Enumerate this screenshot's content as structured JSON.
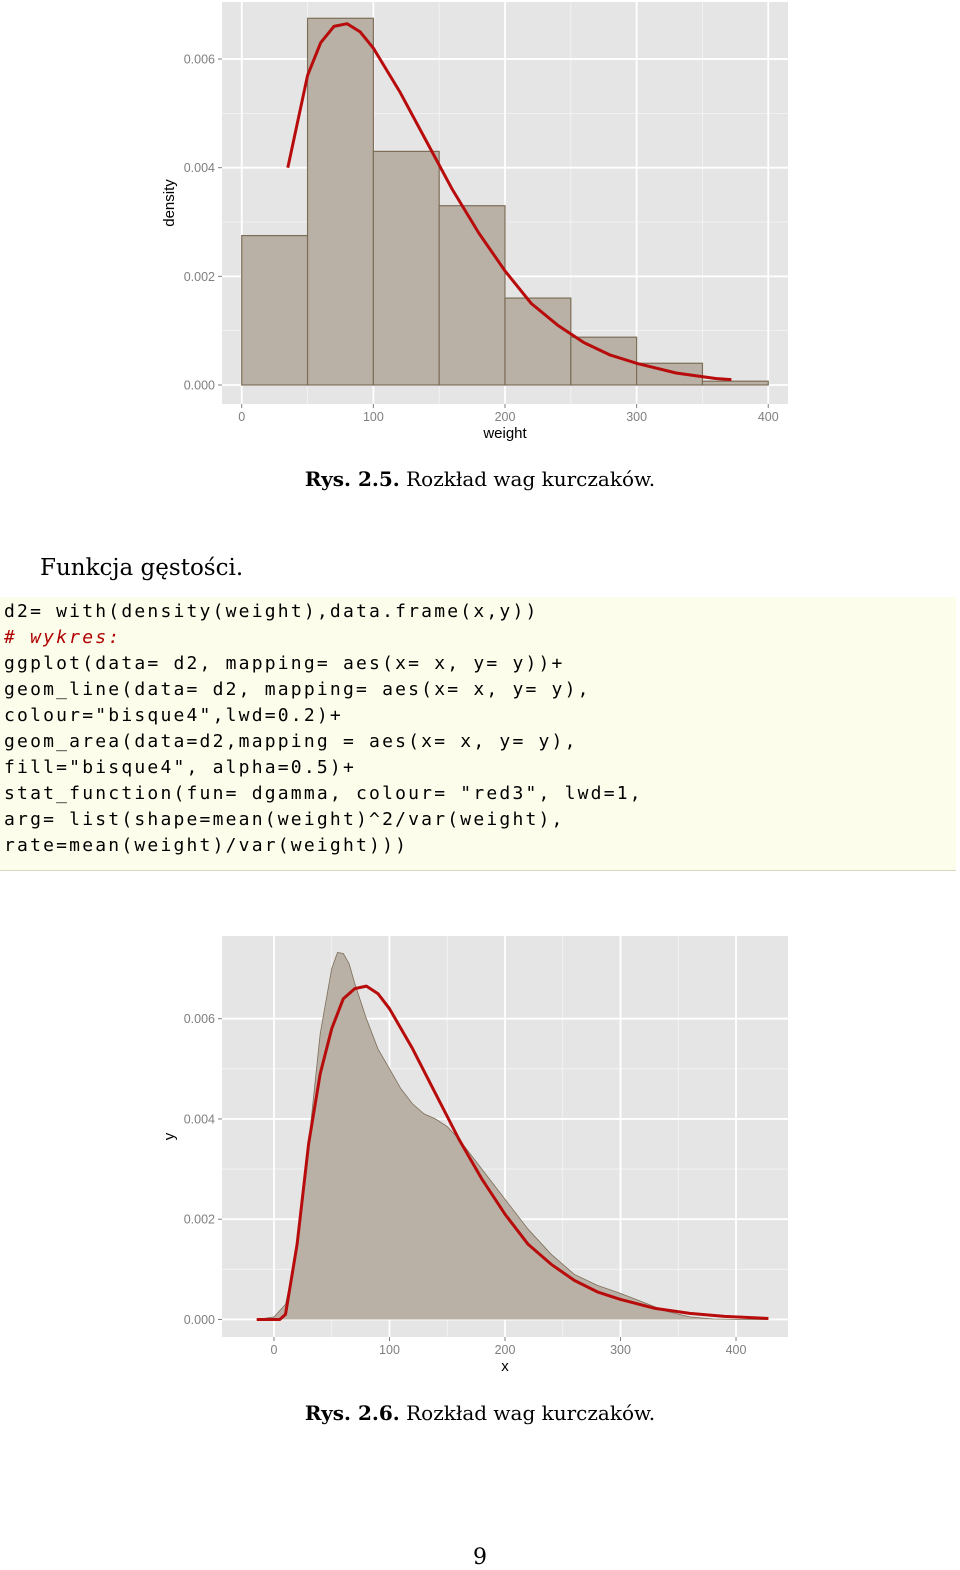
{
  "figure1": {
    "caption_label": "Rys. 2.5.",
    "caption_text": "Rozkład wag kurczaków.",
    "chart_data": {
      "type": "bar",
      "xlabel": "weight",
      "ylabel": "density",
      "xlim": [
        -15,
        415
      ],
      "ylim": [
        -0.00035,
        0.00705
      ],
      "xticks": [
        "0",
        "100",
        "200",
        "300",
        "400"
      ],
      "yticks": [
        "0.000",
        "0.002",
        "0.004",
        "0.006"
      ],
      "bins": [
        [
          0,
          50
        ],
        [
          50,
          100
        ],
        [
          100,
          150
        ],
        [
          150,
          200
        ],
        [
          200,
          250
        ],
        [
          250,
          300
        ],
        [
          300,
          350
        ],
        [
          350,
          400
        ]
      ],
      "values": [
        0.00275,
        0.00675,
        0.0043,
        0.0033,
        0.0016,
        0.00088,
        0.0004,
        7e-05
      ],
      "curve": {
        "x": [
          35,
          50,
          60,
          70,
          80,
          90,
          100,
          120,
          140,
          160,
          180,
          200,
          220,
          240,
          260,
          280,
          300,
          330,
          360,
          372
        ],
        "y": [
          0.004,
          0.0057,
          0.0063,
          0.0066,
          0.00665,
          0.0065,
          0.0062,
          0.0054,
          0.0045,
          0.0036,
          0.0028,
          0.0021,
          0.0015,
          0.0011,
          0.00078,
          0.00055,
          0.0004,
          0.00022,
          0.00012,
          0.0001
        ]
      },
      "colors": {
        "panel": "#e5e5e5",
        "grid": "#ffffff",
        "bar_fill": "#b9b0a6",
        "bar_stroke": "#7d6e58",
        "curve": "#b80c0c"
      }
    }
  },
  "paragraph": "Funkcja gęstości.",
  "code": {
    "lines": [
      "d2= with(density(weight),data.frame(x,y))",
      "# wykres:",
      "ggplot(data= d2, mapping= aes(x= x, y= y))+",
      "geom_line(data= d2, mapping= aes(x= x, y= y),",
      "colour=\"bisque4\",lwd=0.2)+",
      "geom_area(data=d2,mapping = aes(x= x, y= y),",
      "fill=\"bisque4\", alpha=0.5)+",
      "stat_function(fun= dgamma, colour= \"red3\", lwd=1,",
      "arg= list(shape=mean(weight)^2/var(weight),",
      "rate=mean(weight)/var(weight)))"
    ]
  },
  "figure2": {
    "caption_label": "Rys. 2.6.",
    "caption_text": "Rozkład wag kurczaków.",
    "chart_data": {
      "type": "area",
      "xlabel": "x",
      "ylabel": "y",
      "xlim": [
        -45,
        445
      ],
      "ylim": [
        -0.00035,
        0.00765
      ],
      "xticks": [
        "0",
        "100",
        "200",
        "300",
        "400"
      ],
      "yticks": [
        "0.000",
        "0.002",
        "0.004",
        "0.006"
      ],
      "area": {
        "x": [
          -15,
          0,
          10,
          20,
          30,
          40,
          50,
          55,
          60,
          65,
          70,
          80,
          90,
          100,
          110,
          120,
          130,
          140,
          150,
          160,
          170,
          180,
          190,
          200,
          220,
          240,
          260,
          280,
          300,
          320,
          340,
          360,
          380,
          400,
          420,
          428
        ],
        "y": [
          0,
          5e-05,
          0.0003,
          0.0014,
          0.0035,
          0.0057,
          0.007,
          0.00732,
          0.0073,
          0.0071,
          0.0067,
          0.006,
          0.0054,
          0.005,
          0.0046,
          0.0043,
          0.0041,
          0.004,
          0.00385,
          0.0036,
          0.0033,
          0.003,
          0.0027,
          0.0024,
          0.0018,
          0.0013,
          0.0009,
          0.00068,
          0.00052,
          0.00034,
          0.00016,
          5e-05,
          1e-05,
          2e-06,
          0,
          0
        ]
      },
      "curve": {
        "x": [
          -15,
          0,
          5,
          10,
          20,
          30,
          40,
          50,
          60,
          70,
          80,
          90,
          100,
          120,
          140,
          160,
          180,
          200,
          220,
          240,
          260,
          280,
          300,
          330,
          360,
          390,
          420,
          428
        ],
        "y": [
          0,
          0,
          0,
          0.0001,
          0.0015,
          0.0035,
          0.0049,
          0.0058,
          0.0064,
          0.0066,
          0.00665,
          0.0065,
          0.0062,
          0.0054,
          0.0045,
          0.0036,
          0.0028,
          0.0021,
          0.0015,
          0.0011,
          0.00078,
          0.00055,
          0.0004,
          0.00022,
          0.00012,
          6e-05,
          3e-05,
          2e-05
        ]
      },
      "colors": {
        "panel": "#e5e5e5",
        "grid": "#ffffff",
        "area_fill": "#b9b0a6",
        "area_stroke": "#7d6e58",
        "curve": "#b80c0c"
      }
    }
  },
  "page_number": "9"
}
